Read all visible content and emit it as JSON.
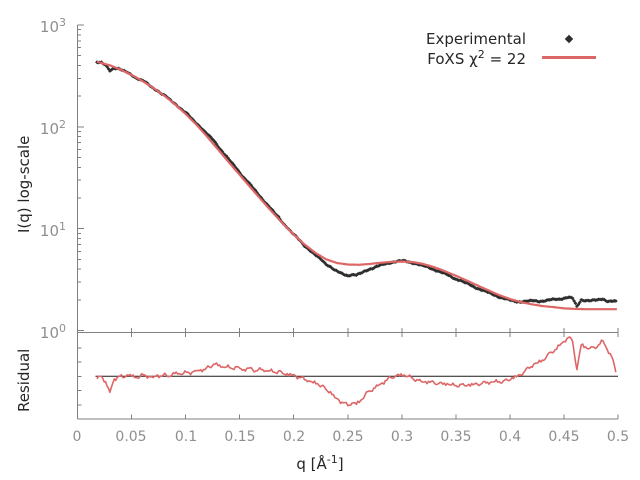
{
  "figure": {
    "legend": {
      "experimental_label": "Experimental",
      "foxs_prefix": "FoXS χ",
      "foxs_sup": "2",
      "foxs_suffix": " = 22"
    },
    "axes": {
      "ylabel_top": "I(q) log-scale",
      "ylabel_bottom": "Residual",
      "xlabel_prefix": "q [Å",
      "xlabel_sup": "-1",
      "xlabel_suffix": "]",
      "ytick_base": "10",
      "ytick_exps": [
        "3",
        "2",
        "1",
        "0"
      ],
      "xtick_labels": [
        "0",
        "0.05",
        "0.1",
        "0.15",
        "0.2",
        "0.25",
        "0.3",
        "0.35",
        "0.4",
        "0.45",
        "0.5"
      ]
    },
    "colors": {
      "fit_line": "#dd6666",
      "experimental_points": "#2e2e2e",
      "axis": "#808080",
      "tick_text": "#8f8f8f",
      "label_text": "#262626",
      "residual_baseline": "#1a1a1a",
      "background": "#ffffff"
    }
  },
  "chart_data": {
    "type": "line",
    "xlabel": "q [Å^-1]",
    "xlim": [
      0,
      0.5
    ],
    "xtick_values": [
      0,
      0.05,
      0.1,
      0.15,
      0.2,
      0.25,
      0.3,
      0.35,
      0.4,
      0.45,
      0.5
    ],
    "top_panel": {
      "ylabel": "I(q) log-scale",
      "yscale": "log",
      "ylim": [
        1,
        1000
      ]
    },
    "residual_panel": {
      "ylabel": "Residual",
      "yscale": "linear",
      "baseline": 1.0,
      "ylim": [
        0.68,
        1.32
      ]
    },
    "q_grid": [
      0.018,
      0.022,
      0.026,
      0.03,
      0.034,
      0.038,
      0.042,
      0.046,
      0.05,
      0.054,
      0.058,
      0.062,
      0.066,
      0.07,
      0.074,
      0.078,
      0.082,
      0.086,
      0.09,
      0.094,
      0.098,
      0.102,
      0.106,
      0.11,
      0.114,
      0.118,
      0.122,
      0.126,
      0.13,
      0.134,
      0.138,
      0.142,
      0.146,
      0.15,
      0.154,
      0.158,
      0.162,
      0.166,
      0.17,
      0.174,
      0.178,
      0.182,
      0.186,
      0.19,
      0.194,
      0.198,
      0.202,
      0.206,
      0.21,
      0.214,
      0.218,
      0.222,
      0.226,
      0.23,
      0.234,
      0.238,
      0.242,
      0.246,
      0.25,
      0.254,
      0.258,
      0.262,
      0.266,
      0.27,
      0.274,
      0.278,
      0.282,
      0.286,
      0.29,
      0.294,
      0.298,
      0.302,
      0.306,
      0.31,
      0.314,
      0.318,
      0.322,
      0.326,
      0.33,
      0.334,
      0.338,
      0.342,
      0.346,
      0.35,
      0.354,
      0.358,
      0.362,
      0.366,
      0.37,
      0.374,
      0.378,
      0.382,
      0.386,
      0.39,
      0.394,
      0.398,
      0.402,
      0.406,
      0.41,
      0.414,
      0.418,
      0.422,
      0.426,
      0.43,
      0.434,
      0.438,
      0.442,
      0.446,
      0.45,
      0.454,
      0.458,
      0.462,
      0.466,
      0.47,
      0.474,
      0.478,
      0.482,
      0.486,
      0.49,
      0.494,
      0.498
    ],
    "series": [
      {
        "name": "Experimental",
        "style": "points",
        "marker": "diamond",
        "color": "#2e2e2e",
        "panel": "top",
        "I": [
          431,
          424,
          402,
          358,
          380,
          372,
          354,
          342,
          325,
          304,
          290,
          277,
          258,
          241,
          227,
          210,
          198,
          182,
          170,
          156,
          143,
          132,
          119,
          109,
          99.2,
          88.7,
          80.8,
          73.6,
          64.8,
          57.2,
          50.8,
          44.9,
          40.4,
          35.8,
          31.6,
          28.6,
          25.3,
          22.6,
          20.2,
          18,
          16.1,
          14.3,
          13,
          11.4,
          10.3,
          9.14,
          8.35,
          7.62,
          6.83,
          6.27,
          5.7,
          5.29,
          4.93,
          4.5,
          4.23,
          3.89,
          3.71,
          3.58,
          3.47,
          3.54,
          3.49,
          3.63,
          3.84,
          4.01,
          4.13,
          4.28,
          4.42,
          4.55,
          4.67,
          4.75,
          4.78,
          4.81,
          4.74,
          4.63,
          4.51,
          4.35,
          4.26,
          4.13,
          3.97,
          3.82,
          3.66,
          3.53,
          3.37,
          3.21,
          3.11,
          2.95,
          2.85,
          2.71,
          2.6,
          2.5,
          2.4,
          2.31,
          2.23,
          2.14,
          2.07,
          2.01,
          1.96,
          1.93,
          1.92,
          1.93,
          1.94,
          1.96,
          1.94,
          1.95,
          1.97,
          2.0,
          2.02,
          2.04,
          2.08,
          2.12,
          2.06,
          1.72,
          2.0,
          1.98,
          1.96,
          1.97,
          2.0,
          2.05,
          1.95,
          1.93,
          1.95
        ]
      },
      {
        "name": "FoXS χ^2 = 22",
        "style": "line",
        "color": "#dd6666",
        "panel": "top",
        "q": [
          0.018,
          0.03,
          0.04,
          0.05,
          0.06,
          0.07,
          0.08,
          0.09,
          0.1,
          0.11,
          0.12,
          0.13,
          0.14,
          0.15,
          0.16,
          0.17,
          0.18,
          0.19,
          0.2,
          0.21,
          0.22,
          0.23,
          0.24,
          0.25,
          0.26,
          0.27,
          0.28,
          0.29,
          0.3,
          0.31,
          0.32,
          0.33,
          0.34,
          0.35,
          0.36,
          0.37,
          0.38,
          0.39,
          0.4,
          0.41,
          0.42,
          0.43,
          0.44,
          0.45,
          0.46,
          0.47,
          0.48,
          0.49,
          0.499
        ],
        "I": [
          435,
          402,
          364,
          324,
          282,
          242,
          203,
          167,
          134,
          105,
          80,
          60,
          45,
          33.8,
          25.4,
          19.2,
          14.6,
          11.2,
          8.75,
          7.0,
          5.8,
          5.0,
          4.6,
          4.45,
          4.42,
          4.5,
          4.62,
          4.72,
          4.76,
          4.7,
          4.5,
          4.18,
          3.82,
          3.45,
          3.1,
          2.77,
          2.48,
          2.23,
          2.04,
          1.9,
          1.81,
          1.74,
          1.7,
          1.65,
          1.63,
          1.62,
          1.62,
          1.62,
          1.62
        ]
      },
      {
        "name": "Residual",
        "style": "line",
        "color": "#dd6666",
        "panel": "residual",
        "ratio": [
          0.98,
          1.0,
          0.96,
          0.88,
          0.98,
          1.0,
          0.99,
          1.01,
          1.0,
          0.99,
          1.0,
          1.01,
          1.0,
          0.99,
          1.01,
          1.0,
          1.01,
          1.0,
          1.02,
          1.02,
          1.02,
          1.03,
          1.03,
          1.04,
          1.05,
          1.05,
          1.07,
          1.09,
          1.08,
          1.07,
          1.07,
          1.06,
          1.07,
          1.06,
          1.05,
          1.06,
          1.05,
          1.04,
          1.05,
          1.04,
          1.04,
          1.03,
          1.04,
          1.02,
          1.02,
          1.01,
          1.0,
          0.99,
          0.975,
          0.965,
          0.95,
          0.945,
          0.93,
          0.9,
          0.885,
          0.84,
          0.82,
          0.8,
          0.78,
          0.8,
          0.79,
          0.82,
          0.86,
          0.89,
          0.91,
          0.93,
          0.95,
          0.97,
          0.99,
          1.0,
          1.005,
          1.01,
          1.0,
          0.985,
          0.975,
          0.96,
          0.96,
          0.955,
          0.95,
          0.945,
          0.94,
          0.945,
          0.935,
          0.93,
          0.94,
          0.93,
          0.94,
          0.935,
          0.94,
          0.945,
          0.95,
          0.955,
          0.96,
          0.96,
          0.965,
          0.97,
          0.99,
          0.995,
          1.01,
          1.04,
          1.06,
          1.09,
          1.1,
          1.12,
          1.15,
          1.18,
          1.2,
          1.23,
          1.26,
          1.29,
          1.26,
          1.05,
          1.235,
          1.22,
          1.21,
          1.215,
          1.235,
          1.265,
          1.2,
          1.15,
          1.03
        ]
      }
    ]
  }
}
